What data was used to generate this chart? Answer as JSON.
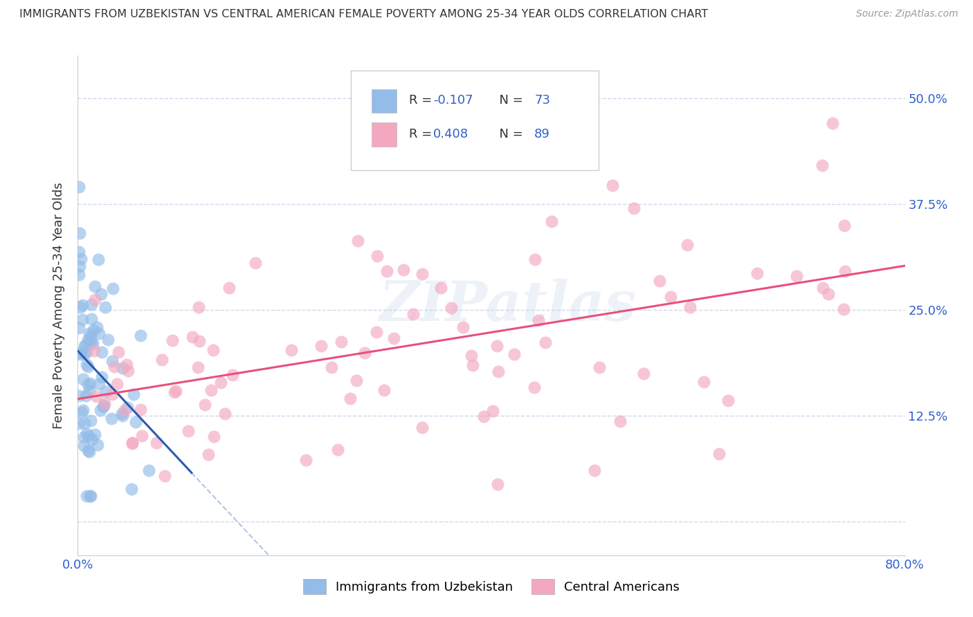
{
  "title": "IMMIGRANTS FROM UZBEKISTAN VS CENTRAL AMERICAN FEMALE POVERTY AMONG 25-34 YEAR OLDS CORRELATION CHART",
  "source": "Source: ZipAtlas.com",
  "ylabel": "Female Poverty Among 25-34 Year Olds",
  "xlim": [
    0.0,
    0.8
  ],
  "ylim": [
    -0.04,
    0.55
  ],
  "yticks": [
    0.0,
    0.125,
    0.25,
    0.375,
    0.5
  ],
  "xticks": [
    0.0,
    0.2,
    0.4,
    0.6,
    0.8
  ],
  "watermark": "ZIPatlas",
  "legend_blue_label": "Immigrants from Uzbekistan",
  "legend_pink_label": "Central Americans",
  "blue_color": "#93bce8",
  "pink_color": "#f4a8c0",
  "blue_line_color": "#2a5ab0",
  "pink_line_color": "#e8507a",
  "blue_dash_color": "#99b8e0",
  "background_color": "#ffffff",
  "grid_color": "#c8d4e8",
  "tick_color": "#3060cc",
  "text_color": "#333333",
  "source_color": "#999999",
  "R_blue": "-0.107",
  "N_blue": "73",
  "R_pink": "0.408",
  "N_pink": "89"
}
